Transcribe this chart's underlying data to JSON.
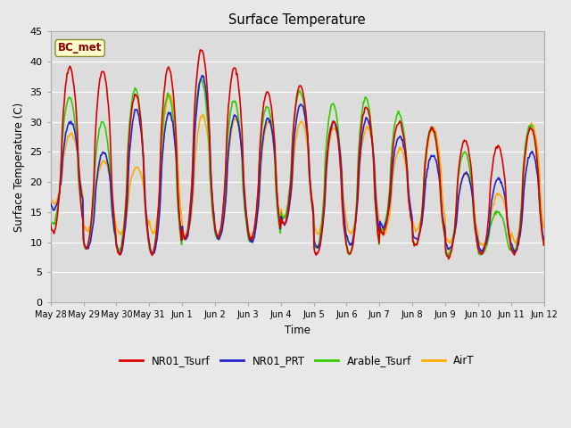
{
  "title": "Surface Temperature",
  "ylabel": "Surface Temperature (C)",
  "xlabel": "Time",
  "annotation": "BC_met",
  "ylim": [
    0,
    45
  ],
  "fig_facecolor": "#e8e8e8",
  "ax_facecolor": "#dcdcdc",
  "series": {
    "NR01_Tsurf": {
      "color": "#dd0000",
      "linewidth": 1.2,
      "zorder": 4
    },
    "NR01_PRT": {
      "color": "#2222cc",
      "linewidth": 1.2,
      "zorder": 3
    },
    "Arable_Tsurf": {
      "color": "#33cc00",
      "linewidth": 1.2,
      "zorder": 2
    },
    "AirT": {
      "color": "#ffaa00",
      "linewidth": 1.2,
      "zorder": 1
    }
  },
  "x_tick_labels": [
    "May 28",
    "May 29",
    "May 30",
    "May 31",
    "Jun 1",
    "Jun 2",
    "Jun 3",
    "Jun 4",
    "Jun 5",
    "Jun 6",
    "Jun 7",
    "Jun 8",
    "Jun 9",
    "Jun 10",
    "Jun 11",
    "Jun 12"
  ],
  "y_ticks": [
    0,
    5,
    10,
    15,
    20,
    25,
    30,
    35,
    40,
    45
  ],
  "legend_labels": [
    "NR01_Tsurf",
    "NR01_PRT",
    "Arable_Tsurf",
    "AirT"
  ],
  "legend_colors": [
    "#dd0000",
    "#2222cc",
    "#33cc00",
    "#ffaa00"
  ],
  "peaks_red": [
    39.0,
    38.5,
    34.5,
    39.0,
    42.0,
    39.0,
    35.0,
    36.0,
    30.0,
    32.5,
    30.0,
    29.0,
    27.0,
    26.0,
    29.0
  ],
  "troughs_red": [
    11.5,
    9.0,
    8.0,
    8.0,
    10.5,
    11.0,
    10.5,
    13.0,
    8.0,
    8.0,
    11.5,
    9.5,
    7.5,
    8.0,
    8.0,
    11.0
  ],
  "peaks_blue": [
    30.0,
    25.0,
    32.0,
    31.5,
    37.5,
    31.0,
    30.5,
    33.0,
    30.0,
    30.5,
    27.5,
    24.5,
    21.5,
    20.5,
    25.0
  ],
  "troughs_blue": [
    15.5,
    9.0,
    8.0,
    8.0,
    10.5,
    10.5,
    10.0,
    13.0,
    9.0,
    9.5,
    12.5,
    10.5,
    9.0,
    8.5,
    8.5,
    11.0
  ],
  "peaks_green": [
    34.0,
    30.0,
    35.5,
    34.5,
    37.0,
    33.5,
    32.5,
    35.0,
    33.0,
    34.0,
    31.5,
    29.0,
    25.0,
    15.0,
    29.5
  ],
  "troughs_green": [
    13.0,
    9.0,
    8.5,
    8.0,
    10.5,
    10.5,
    10.0,
    14.0,
    9.0,
    8.0,
    12.0,
    9.5,
    8.0,
    8.0,
    8.5,
    11.5
  ],
  "peaks_orange": [
    28.0,
    23.5,
    22.5,
    34.5,
    31.0,
    30.5,
    30.0,
    30.0,
    29.0,
    29.0,
    25.5,
    29.0,
    21.5,
    18.0,
    29.5
  ],
  "troughs_orange": [
    16.5,
    12.0,
    11.5,
    11.5,
    11.0,
    10.5,
    10.5,
    14.0,
    11.5,
    11.5,
    11.5,
    12.0,
    10.0,
    9.5,
    10.0,
    15.0
  ]
}
